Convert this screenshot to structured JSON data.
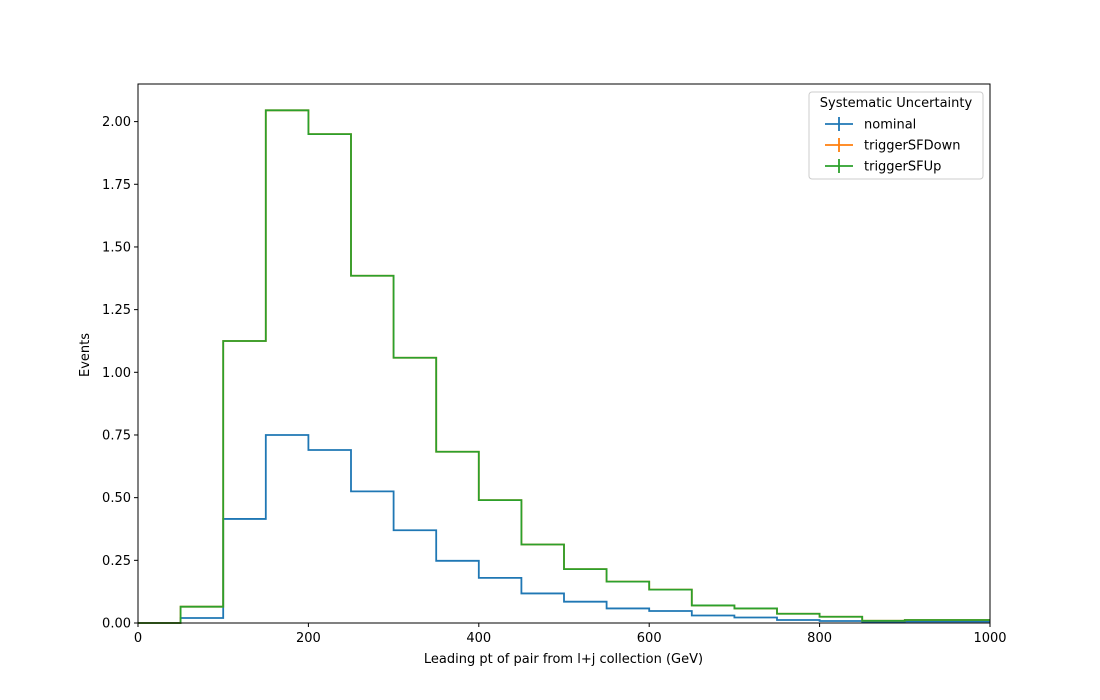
{
  "chart_data": {
    "type": "line",
    "drawstyle": "step",
    "title": "",
    "xlabel": "Leading pt of pair from l+j collection (GeV)",
    "ylabel": "Events",
    "xlim": [
      0,
      1000
    ],
    "ylim": [
      0,
      2.15
    ],
    "xticks": [
      0,
      200,
      400,
      600,
      800,
      1000
    ],
    "xtick_labels": [
      "0",
      "200",
      "400",
      "600",
      "800",
      "1000"
    ],
    "yticks": [
      0,
      0.25,
      0.5,
      0.75,
      1.0,
      1.25,
      1.5,
      1.75,
      2.0
    ],
    "ytick_labels": [
      "0.00",
      "0.25",
      "0.50",
      "0.75",
      "1.00",
      "1.25",
      "1.50",
      "1.75",
      "2.00"
    ],
    "grid": false,
    "legend": {
      "title": "Systematic Uncertainty",
      "placement": "top-right"
    },
    "bin_edges": [
      0,
      50,
      100,
      150,
      200,
      250,
      300,
      350,
      400,
      450,
      500,
      550,
      600,
      650,
      700,
      750,
      800,
      850,
      900,
      950,
      1000
    ],
    "series": [
      {
        "name": "nominal",
        "color": "#1f77b4",
        "values": [
          0.0,
          0.02,
          0.415,
          0.75,
          0.69,
          0.525,
          0.37,
          0.248,
          0.18,
          0.118,
          0.085,
          0.058,
          0.048,
          0.03,
          0.022,
          0.012,
          0.008,
          0.004,
          0.006,
          0.006
        ]
      },
      {
        "name": "triggerSFDown",
        "color": "#ff7f0e",
        "values": [
          0.0,
          0.065,
          1.125,
          2.045,
          1.95,
          1.385,
          1.058,
          0.683,
          0.49,
          0.313,
          0.215,
          0.165,
          0.133,
          0.07,
          0.058,
          0.037,
          0.025,
          0.009,
          0.012,
          0.012
        ]
      },
      {
        "name": "triggerSFUp",
        "color": "#2ca02c",
        "values": [
          0.0,
          0.065,
          1.125,
          2.045,
          1.95,
          1.385,
          1.058,
          0.683,
          0.49,
          0.313,
          0.215,
          0.165,
          0.133,
          0.07,
          0.058,
          0.037,
          0.025,
          0.009,
          0.012,
          0.012
        ]
      }
    ]
  }
}
